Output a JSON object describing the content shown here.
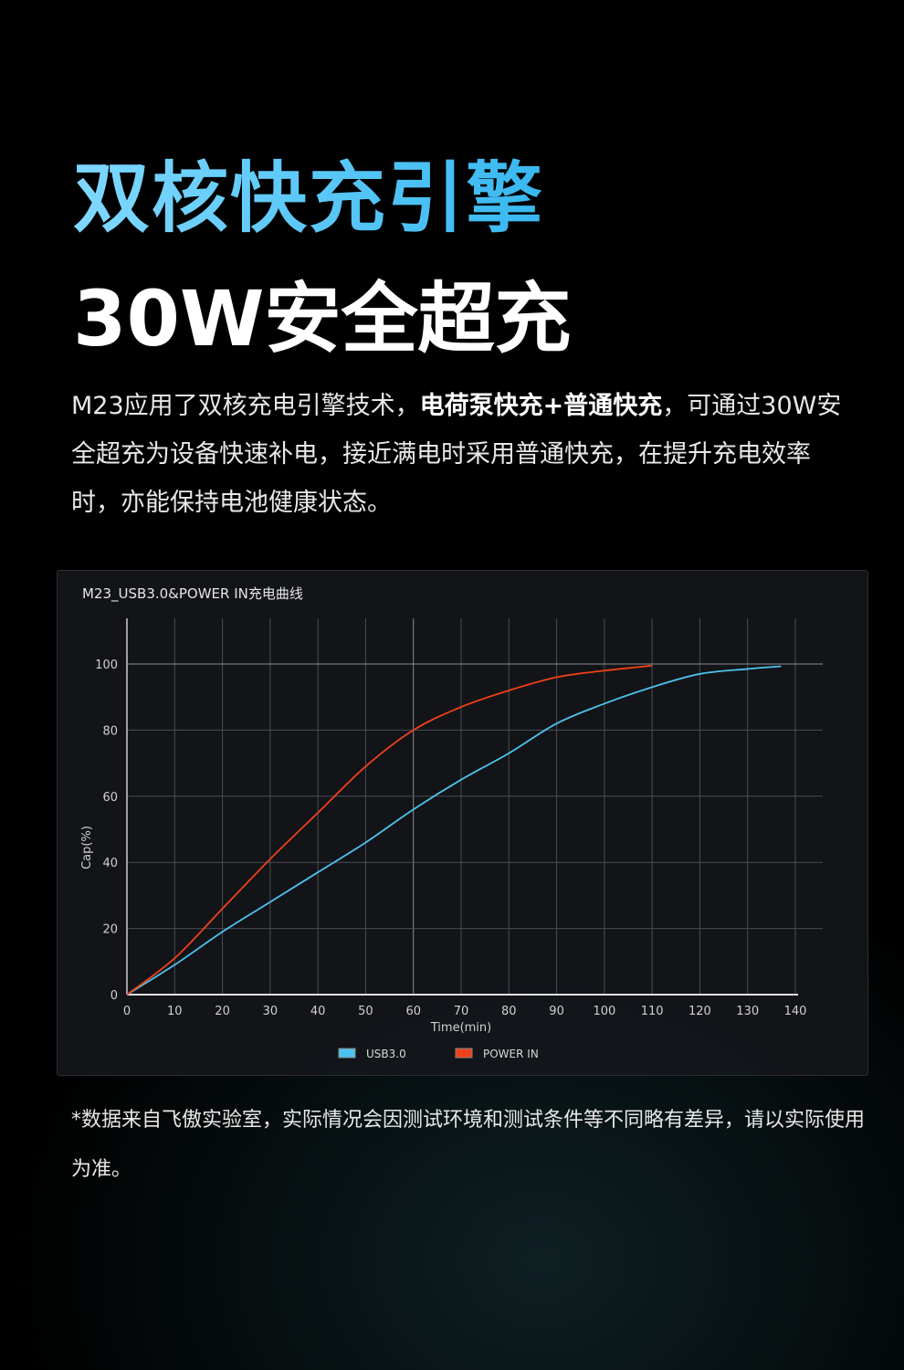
{
  "headline": {
    "line1": "双核快充引擎",
    "line2": "30W安全超充"
  },
  "description": {
    "part1": "M23应用了双核充电引擎技术，",
    "bold": "电荷泵快充+普通快充",
    "part2": "，可通过30W安全超充为设备快速补电，接近满电时采用普通快充，在提升充电效率时，亦能保持电池健康状态。"
  },
  "footnote": "*数据来自飞傲实验室，实际情况会因测试环境和测试条件等不同略有差异，请以实际使用为准。",
  "chart_data": {
    "type": "line",
    "title": "M23_USB3.0&POWER IN充电曲线",
    "xlabel": "Time(min)",
    "ylabel": "Cap(%)",
    "xlim": [
      0,
      140
    ],
    "ylim": [
      0,
      100
    ],
    "xticks": [
      0,
      10,
      20,
      30,
      40,
      50,
      60,
      70,
      80,
      90,
      100,
      110,
      120,
      130,
      140
    ],
    "yticks": [
      0,
      20,
      40,
      60,
      80,
      100
    ],
    "grid": true,
    "legend": "bottom",
    "series": [
      {
        "name": "USB3.0",
        "color": "#4cc3ec",
        "x": [
          0,
          10,
          20,
          30,
          40,
          50,
          60,
          70,
          80,
          90,
          100,
          110,
          120,
          130,
          137
        ],
        "y": [
          0,
          9,
          19,
          28,
          37,
          46,
          56,
          65,
          73,
          82,
          88,
          93,
          97,
          98.5,
          99.3
        ]
      },
      {
        "name": "POWER IN",
        "color": "#f0401a",
        "x": [
          0,
          10,
          20,
          30,
          40,
          50,
          60,
          70,
          80,
          90,
          100,
          110
        ],
        "y": [
          0,
          11,
          26,
          41,
          55,
          69,
          80,
          87,
          92,
          96,
          98,
          99.5
        ]
      }
    ]
  }
}
